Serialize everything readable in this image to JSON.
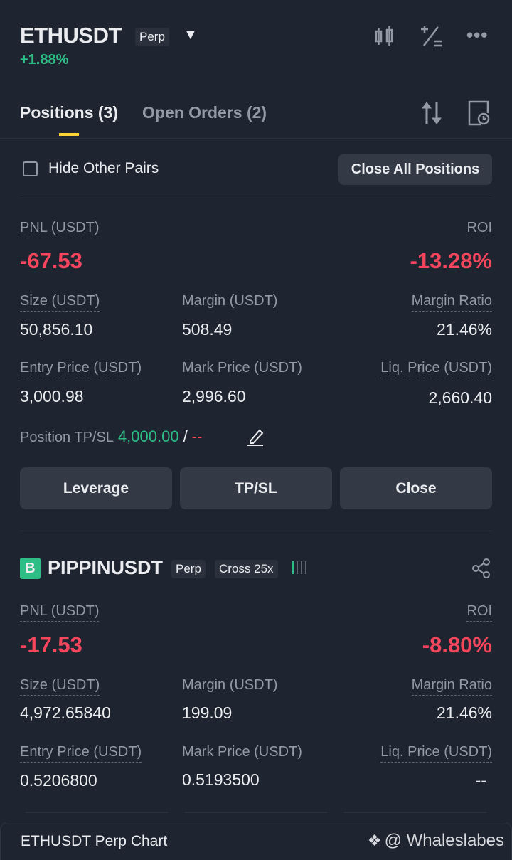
{
  "header": {
    "symbol": "ETHUSDT",
    "type": "Perp",
    "change": "+1.88%"
  },
  "tabs": [
    {
      "label": "Positions (3)",
      "active": true
    },
    {
      "label": "Open Orders (2)",
      "active": false
    }
  ],
  "filter": {
    "hide_other_pairs": "Hide Other Pairs",
    "checked": false,
    "close_all": "Close All Positions"
  },
  "labels": {
    "pnl": "PNL (USDT)",
    "roi": "ROI",
    "size": "Size (USDT)",
    "margin": "Margin (USDT)",
    "margin_ratio": "Margin Ratio",
    "entry": "Entry Price (USDT)",
    "mark": "Mark Price (USDT)",
    "liq": "Liq. Price (USDT)",
    "tpsl": "Position TP/SL"
  },
  "positions": [
    {
      "pnl": "-67.53",
      "roi": "-13.28%",
      "size": "50,856.10",
      "margin": "508.49",
      "margin_ratio": "21.46%",
      "entry": "3,000.98",
      "mark": "2,996.60",
      "liq": "2,660.40",
      "tp": "4,000.00",
      "sep": "/",
      "sl": "--",
      "buttons": {
        "leverage": "Leverage",
        "tpsl": "TP/SL",
        "close": "Close"
      }
    },
    {
      "side_badge": "B",
      "symbol": "PIPPINUSDT",
      "type": "Perp",
      "mode": "Cross 25x",
      "pnl": "-17.53",
      "roi": "-8.80%",
      "size": "4,972.65840",
      "margin": "199.09",
      "margin_ratio": "21.46%",
      "entry": "0.5206800",
      "mark": "0.5193500",
      "liq": "--"
    }
  ],
  "footer": {
    "chart_label": "ETHUSDT Perp Chart",
    "watermark": "@ Whaleslabes"
  },
  "colors": {
    "bg": "#1f2530",
    "up": "#2ebd85",
    "down": "#f6465d",
    "accent": "#fcd535"
  }
}
